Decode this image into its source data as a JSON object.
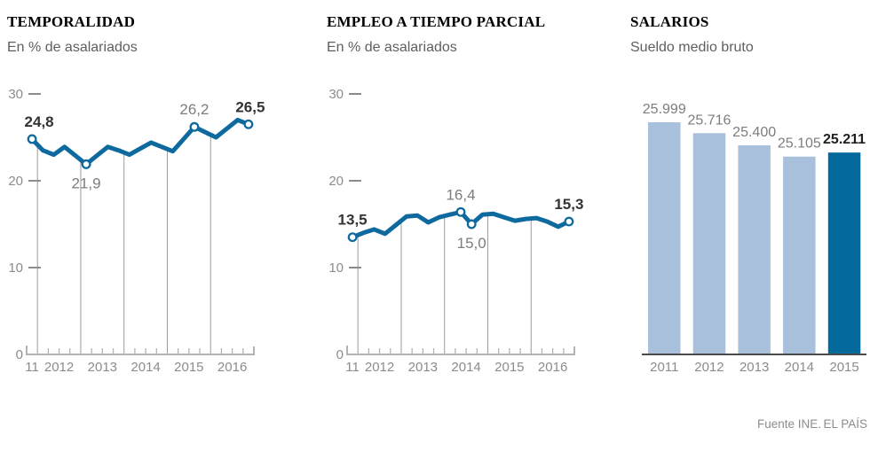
{
  "page": {
    "background": "#ffffff",
    "footer": {
      "source": "Fuente INE.",
      "credit": "EL PAÍS"
    }
  },
  "colors": {
    "line": "#0e6a9e",
    "marker_fill": "#ffffff",
    "bar_light": "#a9c0dc",
    "bar_dark": "#04699b",
    "label_bold": "#333333",
    "label_gray": "#7d7d7d",
    "axis_text": "#8c8c8c",
    "axis_line": "#b3b3b3",
    "gridline": "#9b9b9b",
    "bar_axis_line": "#4a4a4a",
    "title": "#000000",
    "subtitle": "#5f5f5f",
    "footer_text": "#8c8c8c"
  },
  "chart_data": [
    {
      "type": "line",
      "title": "TEMPORALIDAD",
      "subtitle": "En % de asalariados",
      "x": [
        "2011T4",
        "2012T1",
        "2012T2",
        "2012T3",
        "2012T4",
        "2013T1",
        "2013T2",
        "2013T3",
        "2013T4",
        "2014T1",
        "2014T2",
        "2014T3",
        "2014T4",
        "2015T1",
        "2015T2",
        "2015T3",
        "2015T4",
        "2016T1",
        "2016T2",
        "2016T3",
        "2016T4"
      ],
      "values": [
        24.8,
        23.5,
        23.0,
        23.9,
        22.9,
        21.9,
        22.9,
        23.9,
        23.5,
        23.0,
        23.7,
        24.4,
        23.9,
        23.4,
        24.8,
        26.2,
        25.6,
        25.0,
        26.0,
        27.0,
        26.5
      ],
      "x_tick_labels": [
        "11",
        "2012",
        "2013",
        "2014",
        "2015",
        "2016"
      ],
      "y_ticks": [
        30,
        20,
        10,
        0
      ],
      "ylim": [
        0,
        30
      ],
      "grid": "vertical-year-lines",
      "annotations": [
        {
          "index": 0,
          "text": "24,8",
          "bold": true,
          "position": "above",
          "dx": 8
        },
        {
          "index": 5,
          "text": "21,9",
          "bold": false,
          "position": "below",
          "dx": 0
        },
        {
          "index": 15,
          "text": "26,2",
          "bold": false,
          "position": "above",
          "dx": 0
        },
        {
          "index": 20,
          "text": "26,5",
          "bold": true,
          "position": "above",
          "dx": 2
        }
      ]
    },
    {
      "type": "line",
      "title": "EMPLEO A TIEMPO PARCIAL",
      "subtitle": "En % de asalariados",
      "x": [
        "2011T4",
        "2012T1",
        "2012T2",
        "2012T3",
        "2012T4",
        "2013T1",
        "2013T2",
        "2013T3",
        "2013T4",
        "2014T1",
        "2014T2",
        "2014T3",
        "2014T4",
        "2015T1",
        "2015T2",
        "2015T3",
        "2015T4",
        "2016T1",
        "2016T2",
        "2016T3",
        "2016T4"
      ],
      "values": [
        13.5,
        14.0,
        14.4,
        13.9,
        14.9,
        15.9,
        16.0,
        15.2,
        15.8,
        16.1,
        16.4,
        15.0,
        16.1,
        16.2,
        15.8,
        15.4,
        15.6,
        15.7,
        15.3,
        14.7,
        15.3
      ],
      "x_tick_labels": [
        "11",
        "2012",
        "2013",
        "2014",
        "2015",
        "2016"
      ],
      "y_ticks": [
        30,
        20,
        10,
        0
      ],
      "ylim": [
        0,
        30
      ],
      "grid": "vertical-year-lines",
      "annotations": [
        {
          "index": 0,
          "text": "13,5",
          "bold": true,
          "position": "above",
          "dx": 0
        },
        {
          "index": 10,
          "text": "16,4",
          "bold": false,
          "position": "above",
          "dx": 0
        },
        {
          "index": 11,
          "text": "15,0",
          "bold": false,
          "position": "below",
          "dx": 0
        },
        {
          "index": 20,
          "text": "15,3",
          "bold": true,
          "position": "above",
          "dx": 0
        }
      ]
    },
    {
      "type": "bar",
      "title": "SALARIOS",
      "subtitle": "Sueldo medio bruto",
      "categories": [
        "2011",
        "2012",
        "2013",
        "2014",
        "2015"
      ],
      "values": [
        25999,
        25716,
        25400,
        25105,
        25211
      ],
      "value_labels": [
        "25.999",
        "25.716",
        "25.400",
        "25.105",
        "25.211"
      ],
      "highlight_index": 4,
      "baseline_value_visual": 20000,
      "grid": "off"
    }
  ]
}
